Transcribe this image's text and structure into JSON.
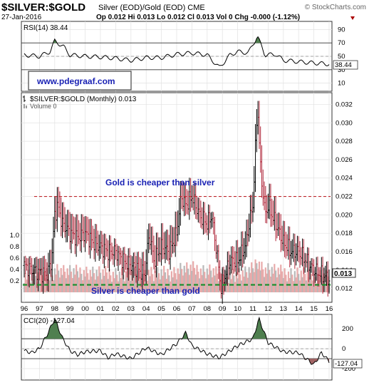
{
  "header": {
    "symbol": "$SILVER:$GOLD",
    "description": "Silver (EOD)/Gold (EOD) CME",
    "source": "© StockCharts.com",
    "date": "27-Jan-2016",
    "ohlc": "Op 0.012  Hi 0.013  Lo 0.012  Cl 0.013  Vol 0  Chg -0.000 (-1.12%)"
  },
  "rsi": {
    "label": "RSI(14) 38.44",
    "last": "38.44",
    "ticks": [
      90,
      70,
      50,
      30,
      10
    ],
    "ylim": [
      0,
      100
    ],
    "overbought": 70,
    "oversold": 30,
    "line_color": "#000000",
    "fill_color": "#4f7f4f"
  },
  "watermark_url": "www.pdegraaf.com",
  "main": {
    "label": "$SILVER:$GOLD (Monthly) 0.013",
    "volume_label": "Volume 0",
    "last_value": "0.013",
    "price_ticks": [
      "0.032",
      "0.030",
      "0.028",
      "0.026",
      "0.024",
      "0.022",
      "0.020",
      "0.018",
      "0.016",
      "0.014",
      "0.012"
    ],
    "volume_ticks": [
      "1.0",
      "0.8",
      "0.6",
      "0.4",
      "0.2"
    ],
    "annotation_top": "Gold is cheaper than silver",
    "annotation_bottom": "Silver is cheaper than gold",
    "resistance": 0.022,
    "support": 0.0124,
    "resistance_color": "#c0272d",
    "support_color": "#1f8f2f",
    "annotation_color": "#1a22b4"
  },
  "x_axis": [
    "96",
    "97",
    "98",
    "99",
    "00",
    "01",
    "02",
    "03",
    "04",
    "05",
    "06",
    "07",
    "08",
    "09",
    "10",
    "11",
    "12",
    "13",
    "14",
    "15",
    "16"
  ],
  "cci": {
    "label": "CCI(20) -127.04",
    "last": "-127.04",
    "ticks": [
      200,
      0,
      -200
    ],
    "ylim": [
      -300,
      330
    ],
    "bands": [
      100,
      -100
    ],
    "pos_fill": "#4f7f4f",
    "neg_fill": "#a26464"
  },
  "chart_data": {
    "type": "line",
    "title": "$SILVER:$GOLD (Monthly)",
    "x_unit": "year",
    "series": [
      {
        "name": "$SILVER:$GOLD",
        "x": [
          1996.0,
          1996.5,
          1997.0,
          1997.5,
          1997.8,
          1998.0,
          1998.2,
          1998.5,
          1999.0,
          1999.5,
          2000.0,
          2000.5,
          2001.0,
          2001.5,
          2002.0,
          2002.5,
          2003.0,
          2003.5,
          2003.9,
          2004.2,
          2004.5,
          2005.0,
          2005.5,
          2006.0,
          2006.3,
          2006.6,
          2007.0,
          2007.5,
          2008.0,
          2008.3,
          2008.7,
          2008.9,
          2009.2,
          2009.5,
          2010.0,
          2010.5,
          2010.8,
          2011.0,
          2011.3,
          2011.5,
          2011.8,
          2012.0,
          2012.5,
          2013.0,
          2013.5,
          2014.0,
          2014.5,
          2015.0,
          2015.5,
          2016.0
        ],
        "values": [
          0.0145,
          0.014,
          0.0138,
          0.0135,
          0.015,
          0.02,
          0.021,
          0.019,
          0.018,
          0.0175,
          0.018,
          0.017,
          0.0165,
          0.016,
          0.016,
          0.015,
          0.0145,
          0.014,
          0.0135,
          0.018,
          0.015,
          0.0165,
          0.016,
          0.018,
          0.022,
          0.021,
          0.022,
          0.02,
          0.019,
          0.02,
          0.015,
          0.012,
          0.0135,
          0.015,
          0.015,
          0.0165,
          0.0195,
          0.021,
          0.032,
          0.025,
          0.02,
          0.021,
          0.019,
          0.017,
          0.016,
          0.016,
          0.015,
          0.014,
          0.0135,
          0.013
        ]
      },
      {
        "name": "RSI(14)",
        "x": [
          1996,
          1997,
          1997.7,
          1998,
          1998.6,
          1999,
          2000,
          2001,
          2002,
          2003,
          2004,
          2005,
          2006,
          2007,
          2008,
          2008.8,
          2009.5,
          2010,
          2010.7,
          2011.3,
          2011.8,
          2012.5,
          2013,
          2014,
          2015,
          2016
        ],
        "values": [
          52,
          50,
          57,
          73,
          64,
          52,
          50,
          49,
          47,
          44,
          48,
          48,
          53,
          55,
          52,
          33,
          52,
          57,
          55,
          80,
          52,
          53,
          44,
          42,
          40,
          38.44
        ]
      },
      {
        "name": "CCI(20)",
        "x": [
          1996,
          1996.5,
          1997,
          1997.5,
          1998,
          1998.5,
          1999,
          1999.5,
          2000,
          2001,
          2001.5,
          2002,
          2003,
          2004,
          2005,
          2006,
          2006.6,
          2007,
          2008,
          2008.8,
          2009.5,
          2010,
          2011,
          2011.4,
          2012,
          2013,
          2014,
          2015,
          2015.5,
          2016
        ],
        "values": [
          -20,
          -40,
          0,
          140,
          300,
          110,
          -20,
          -60,
          -30,
          -20,
          -90,
          -50,
          -100,
          10,
          -60,
          50,
          160,
          30,
          -50,
          -90,
          -20,
          30,
          100,
          300,
          60,
          -30,
          -40,
          -160,
          -40,
          -127.04
        ]
      }
    ]
  }
}
